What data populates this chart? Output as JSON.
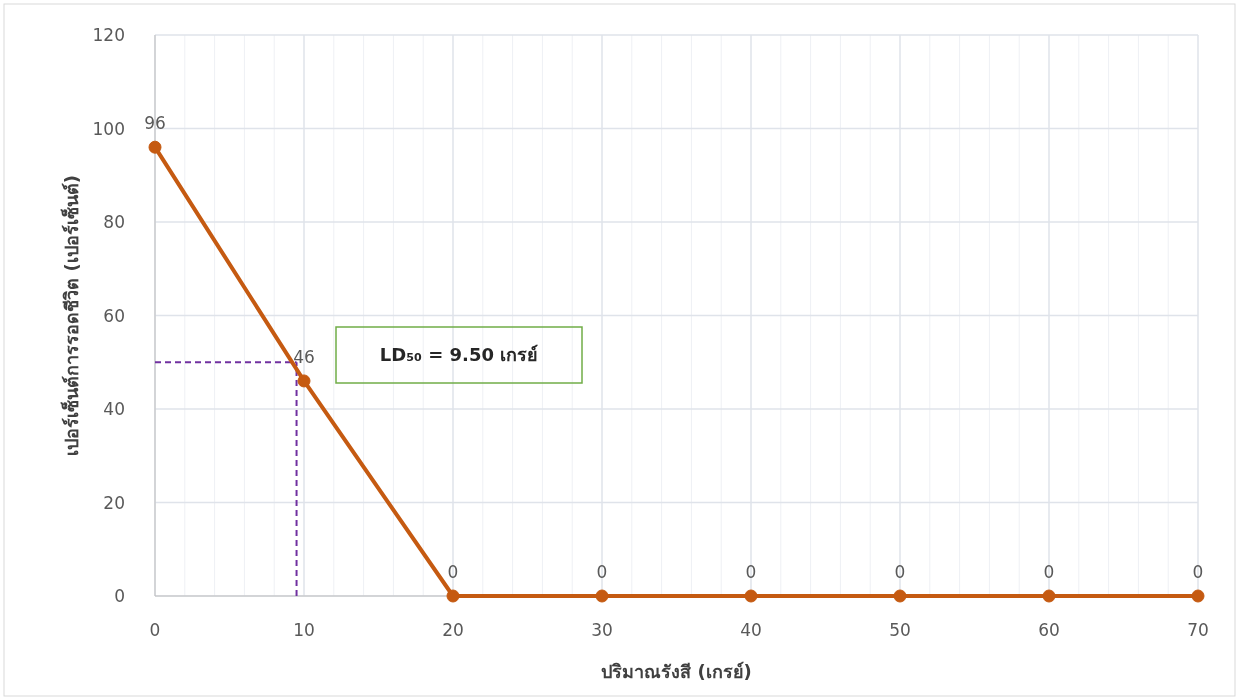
{
  "chart_data": {
    "type": "line",
    "xlabel": "ปริมาณรังสี (เกรย์)",
    "ylabel": "เปอร์เซ็นต์การรอดชีวิต  (เปอร์เซ็นต์)",
    "x": [
      0,
      10,
      20,
      30,
      40,
      50,
      60,
      70
    ],
    "series": [
      {
        "color": "#c55a11",
        "values": [
          96,
          46,
          0,
          0,
          0,
          0,
          0,
          0
        ]
      }
    ],
    "xlim": [
      0,
      70
    ],
    "xticks": [
      0,
      10,
      20,
      30,
      40,
      50,
      60,
      70
    ],
    "ylim": [
      0,
      120
    ],
    "yticks": [
      0,
      20,
      40,
      60,
      80,
      100,
      120
    ],
    "grid": true,
    "marker": "circle",
    "line_style": "solid",
    "data_labels": true,
    "ref_lines": [
      {
        "axis": "x",
        "value": 9.5,
        "color": "#7030a0",
        "line_style": "dashed"
      },
      {
        "axis": "y",
        "value": 50,
        "color": "#7030a0",
        "line_style": "dashed"
      }
    ],
    "annotations": [
      "LD₅₀ = 9.50 เกรย์"
    ]
  }
}
